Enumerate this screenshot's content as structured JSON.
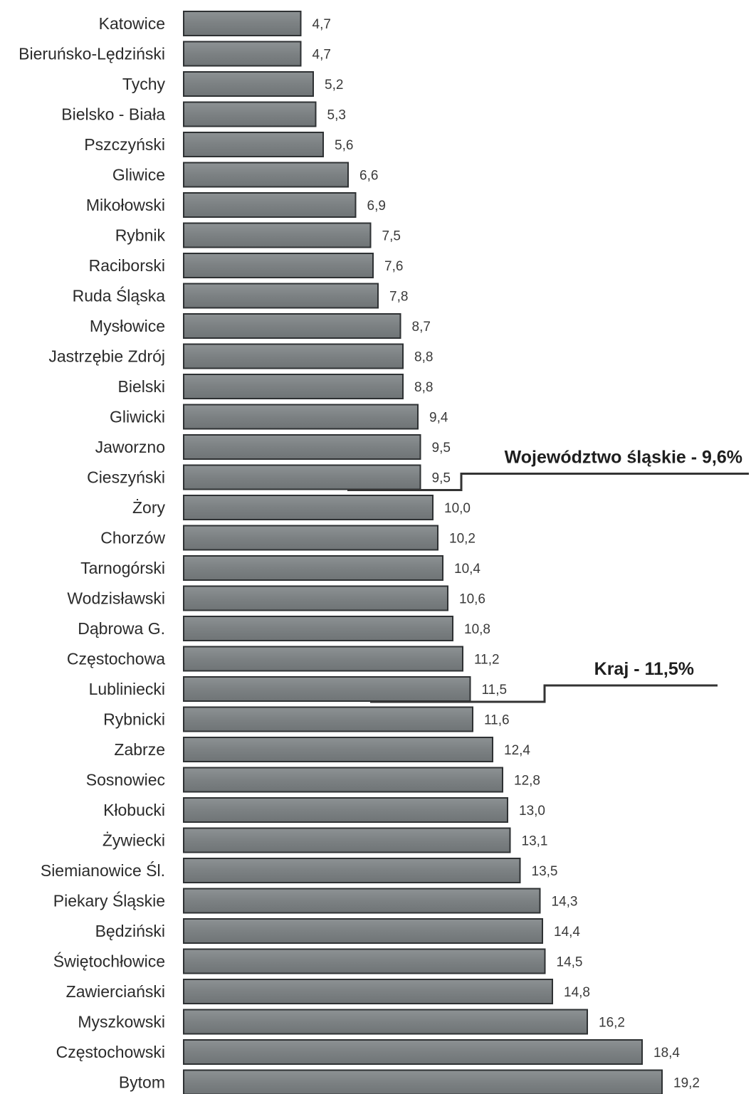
{
  "chart_data": {
    "type": "bar",
    "orientation": "horizontal",
    "categories": [
      "Katowice",
      "Bieruńsko-Lędziński",
      "Tychy",
      "Bielsko - Biała",
      "Pszczyński",
      "Gliwice",
      "Mikołowski",
      "Rybnik",
      "Raciborski",
      "Ruda  Śląska",
      "Mysłowice",
      "Jastrzębie Zdrój",
      "Bielski",
      "Gliwicki",
      "Jaworzno",
      "Cieszyński",
      "Żory",
      "Chorzów",
      "Tarnogórski",
      "Wodzisławski",
      "Dąbrowa G.",
      "Częstochowa",
      "Lubliniecki",
      "Rybnicki",
      "Zabrze",
      "Sosnowiec",
      "Kłobucki",
      "Żywiecki",
      "Siemianowice Śl.",
      "Piekary Śląskie",
      "Będziński",
      "Świętochłowice",
      "Zawierciański",
      "Myszkowski",
      "Częstochowski",
      "Bytom"
    ],
    "values": [
      4.7,
      4.7,
      5.2,
      5.3,
      5.6,
      6.6,
      6.9,
      7.5,
      7.6,
      7.8,
      8.7,
      8.8,
      8.8,
      9.4,
      9.5,
      9.5,
      10.0,
      10.2,
      10.4,
      10.6,
      10.8,
      11.2,
      11.5,
      11.6,
      12.4,
      12.8,
      13.0,
      13.1,
      13.5,
      14.3,
      14.4,
      14.5,
      14.8,
      16.2,
      18.4,
      19.2
    ],
    "value_labels": [
      "4,7",
      "4,7",
      "5,2",
      "5,3",
      "5,6",
      "6,6",
      "6,9",
      "7,5",
      "7,6",
      "7,8",
      "8,7",
      "8,8",
      "8,8",
      "9,4",
      "9,5",
      "9,5",
      "10,0",
      "10,2",
      "10,4",
      "10,6",
      "10,8",
      "11,2",
      "11,5",
      "11,6",
      "12,4",
      "12,8",
      "13,0",
      "13,1",
      "13,5",
      "14,3",
      "14,4",
      "14,5",
      "14,8",
      "16,2",
      "18,4",
      "19,2"
    ],
    "annotations": [
      {
        "text": "Województwo śląskie - 9,6%",
        "value": 9.6,
        "row_index": 15
      },
      {
        "text": "Kraj - 11,5%",
        "value": 11.5,
        "row_index": 22
      }
    ],
    "xlim": [
      0,
      19.2
    ],
    "bar_color": "#7f8486",
    "bar_edge_color": "#2e3133",
    "reference_line_color": "#333333",
    "grid": false,
    "legend": "none"
  }
}
